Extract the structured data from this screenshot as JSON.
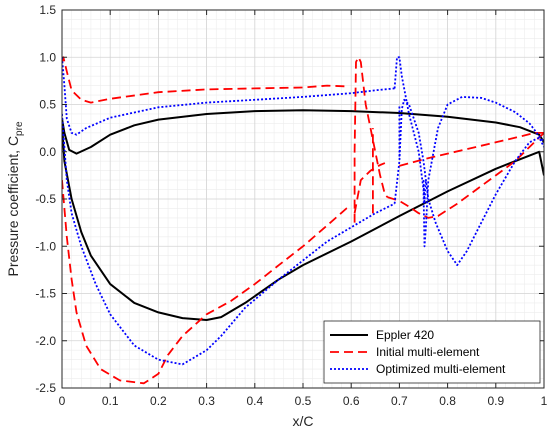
{
  "chart_data": {
    "type": "line",
    "xlabel": "x/C",
    "ylabel_main": "Pressure coefficient, C",
    "ylabel_sub": "pre",
    "xlim": [
      0,
      1
    ],
    "ylim": [
      -2.5,
      1.5
    ],
    "xticks": [
      0,
      0.1,
      0.2,
      0.3,
      0.4,
      0.5,
      0.6,
      0.7,
      0.8,
      0.9,
      1
    ],
    "xtick_labels": [
      "0",
      "0.1",
      "0.2",
      "0.3",
      "0.4",
      "0.5",
      "0.6",
      "0.7",
      "0.8",
      "0.9",
      "1"
    ],
    "yticks": [
      1.5,
      1.0,
      0.5,
      0.0,
      -0.5,
      -1.0,
      -1.5,
      -2.0,
      -2.5
    ],
    "ytick_labels": [
      "1.5",
      "1.0",
      "0.5",
      "0.0",
      "-0.5",
      "-1.0",
      "-1.5",
      "-2.0",
      "-2.5"
    ],
    "grid": true,
    "legend_position": "bottom-right",
    "series": [
      {
        "name": "Eppler 420",
        "color": "#000000",
        "style": "solid",
        "segments": [
          [
            [
              0.0,
              0.35
            ],
            [
              0.005,
              0.2
            ],
            [
              0.015,
              0.02
            ],
            [
              0.03,
              -0.02
            ],
            [
              0.06,
              0.05
            ],
            [
              0.1,
              0.18
            ],
            [
              0.15,
              0.28
            ],
            [
              0.2,
              0.34
            ],
            [
              0.3,
              0.4
            ],
            [
              0.4,
              0.43
            ],
            [
              0.5,
              0.44
            ],
            [
              0.6,
              0.43
            ],
            [
              0.7,
              0.41
            ],
            [
              0.8,
              0.37
            ],
            [
              0.9,
              0.31
            ],
            [
              0.95,
              0.26
            ],
            [
              0.99,
              0.18
            ],
            [
              1.0,
              0.1
            ]
          ],
          [
            [
              0.0,
              0.3
            ],
            [
              0.005,
              -0.1
            ],
            [
              0.02,
              -0.5
            ],
            [
              0.04,
              -0.85
            ],
            [
              0.06,
              -1.1
            ],
            [
              0.1,
              -1.4
            ],
            [
              0.15,
              -1.6
            ],
            [
              0.2,
              -1.7
            ],
            [
              0.25,
              -1.76
            ],
            [
              0.3,
              -1.78
            ],
            [
              0.33,
              -1.75
            ],
            [
              0.38,
              -1.6
            ],
            [
              0.45,
              -1.35
            ],
            [
              0.5,
              -1.2
            ],
            [
              0.6,
              -0.95
            ],
            [
              0.7,
              -0.68
            ],
            [
              0.8,
              -0.42
            ],
            [
              0.9,
              -0.18
            ],
            [
              0.95,
              -0.08
            ],
            [
              0.99,
              0.0
            ],
            [
              1.0,
              -0.25
            ]
          ]
        ]
      },
      {
        "name": "Initial multi-element",
        "color": "#ff0000",
        "style": "dashed",
        "segments": [
          [
            [
              0.0,
              0.95
            ],
            [
              0.003,
              1.0
            ],
            [
              0.01,
              0.85
            ],
            [
              0.02,
              0.65
            ],
            [
              0.04,
              0.55
            ],
            [
              0.06,
              0.52
            ],
            [
              0.1,
              0.56
            ],
            [
              0.2,
              0.63
            ],
            [
              0.3,
              0.66
            ],
            [
              0.4,
              0.67
            ],
            [
              0.5,
              0.68
            ],
            [
              0.55,
              0.7
            ],
            [
              0.595,
              0.69
            ]
          ],
          [
            [
              0.0,
              -0.3
            ],
            [
              0.01,
              -0.9
            ],
            [
              0.02,
              -1.35
            ],
            [
              0.03,
              -1.7
            ],
            [
              0.05,
              -2.05
            ],
            [
              0.08,
              -2.3
            ],
            [
              0.12,
              -2.42
            ],
            [
              0.17,
              -2.45
            ],
            [
              0.2,
              -2.35
            ],
            [
              0.22,
              -2.15
            ],
            [
              0.25,
              -1.95
            ],
            [
              0.3,
              -1.72
            ],
            [
              0.35,
              -1.58
            ],
            [
              0.4,
              -1.4
            ],
            [
              0.45,
              -1.2
            ],
            [
              0.5,
              -1.0
            ],
            [
              0.55,
              -0.78
            ],
            [
              0.59,
              -0.6
            ],
            [
              0.6,
              -0.57
            ]
          ],
          [
            [
              0.607,
              -0.75
            ],
            [
              0.607,
              0.0
            ],
            [
              0.61,
              0.95
            ],
            [
              0.615,
              1.0
            ],
            [
              0.62,
              0.95
            ],
            [
              0.63,
              0.5
            ],
            [
              0.64,
              0.25
            ],
            [
              0.65,
              0.0
            ],
            [
              0.66,
              -0.25
            ],
            [
              0.67,
              -0.45
            ],
            [
              0.675,
              -0.48
            ]
          ],
          [
            [
              0.607,
              -0.65
            ],
            [
              0.62,
              -0.3
            ],
            [
              0.64,
              -0.2
            ],
            [
              0.66,
              -0.14
            ],
            [
              0.67,
              -0.12
            ]
          ],
          [
            [
              0.645,
              -0.65
            ],
            [
              0.645,
              0.25
            ]
          ],
          [
            [
              0.675,
              -0.48
            ],
            [
              0.7,
              -0.52
            ],
            [
              0.72,
              -0.58
            ],
            [
              0.74,
              -0.65
            ],
            [
              0.76,
              -0.7
            ],
            [
              0.78,
              -0.68
            ],
            [
              0.82,
              -0.55
            ],
            [
              0.86,
              -0.4
            ],
            [
              0.9,
              -0.25
            ],
            [
              0.94,
              -0.1
            ],
            [
              0.97,
              0.05
            ],
            [
              0.99,
              0.15
            ],
            [
              1.0,
              0.2
            ]
          ],
          [
            [
              0.7,
              -0.15
            ],
            [
              0.75,
              -0.08
            ],
            [
              0.8,
              -0.02
            ],
            [
              0.85,
              0.04
            ],
            [
              0.9,
              0.1
            ],
            [
              0.95,
              0.16
            ],
            [
              0.98,
              0.2
            ],
            [
              1.0,
              0.2
            ]
          ]
        ]
      },
      {
        "name": "Optimized multi-element",
        "color": "#0000ff",
        "style": "dotted",
        "segments": [
          [
            [
              0.0,
              1.0
            ],
            [
              0.005,
              0.7
            ],
            [
              0.01,
              0.35
            ],
            [
              0.02,
              0.2
            ],
            [
              0.03,
              0.18
            ],
            [
              0.05,
              0.25
            ],
            [
              0.1,
              0.36
            ],
            [
              0.2,
              0.47
            ],
            [
              0.3,
              0.52
            ],
            [
              0.4,
              0.55
            ],
            [
              0.5,
              0.58
            ],
            [
              0.6,
              0.62
            ],
            [
              0.65,
              0.65
            ],
            [
              0.69,
              0.67
            ]
          ],
          [
            [
              0.0,
              0.4
            ],
            [
              0.01,
              -0.3
            ],
            [
              0.02,
              -0.65
            ],
            [
              0.04,
              -1.0
            ],
            [
              0.07,
              -1.4
            ],
            [
              0.1,
              -1.72
            ],
            [
              0.15,
              -2.05
            ],
            [
              0.2,
              -2.2
            ],
            [
              0.25,
              -2.25
            ],
            [
              0.3,
              -2.1
            ],
            [
              0.33,
              -1.95
            ],
            [
              0.38,
              -1.65
            ],
            [
              0.45,
              -1.35
            ],
            [
              0.5,
              -1.15
            ],
            [
              0.55,
              -0.95
            ],
            [
              0.6,
              -0.8
            ],
            [
              0.65,
              -0.65
            ],
            [
              0.69,
              -0.55
            ]
          ],
          [
            [
              0.69,
              0.67
            ],
            [
              0.695,
              1.0
            ],
            [
              0.7,
              1.0
            ],
            [
              0.705,
              0.8
            ],
            [
              0.72,
              0.4
            ],
            [
              0.74,
              0.0
            ],
            [
              0.75,
              -0.4
            ],
            [
              0.752,
              -1.0
            ],
            [
              0.755,
              -0.8
            ],
            [
              0.76,
              -0.3
            ],
            [
              0.78,
              0.25
            ],
            [
              0.8,
              0.5
            ],
            [
              0.83,
              0.58
            ],
            [
              0.87,
              0.57
            ],
            [
              0.9,
              0.52
            ],
            [
              0.94,
              0.42
            ],
            [
              0.97,
              0.3
            ],
            [
              1.0,
              0.1
            ]
          ],
          [
            [
              0.69,
              -0.55
            ],
            [
              0.7,
              -0.1
            ],
            [
              0.705,
              0.45
            ],
            [
              0.71,
              0.55
            ],
            [
              0.72,
              0.5
            ],
            [
              0.74,
              0.2
            ],
            [
              0.75,
              -0.1
            ],
            [
              0.76,
              -0.5
            ],
            [
              0.775,
              -0.75
            ],
            [
              0.8,
              -1.05
            ],
            [
              0.82,
              -1.2
            ],
            [
              0.84,
              -1.05
            ],
            [
              0.87,
              -0.75
            ],
            [
              0.9,
              -0.45
            ],
            [
              0.94,
              -0.1
            ],
            [
              0.97,
              0.1
            ],
            [
              0.99,
              0.15
            ],
            [
              1.0,
              0.05
            ]
          ],
          [
            [
              0.7,
              -0.05
            ],
            [
              0.7,
              0.5
            ]
          ],
          [
            [
              0.75,
              -0.3
            ],
            [
              0.752,
              -0.55
            ],
            [
              0.755,
              -0.3
            ]
          ]
        ]
      }
    ]
  }
}
